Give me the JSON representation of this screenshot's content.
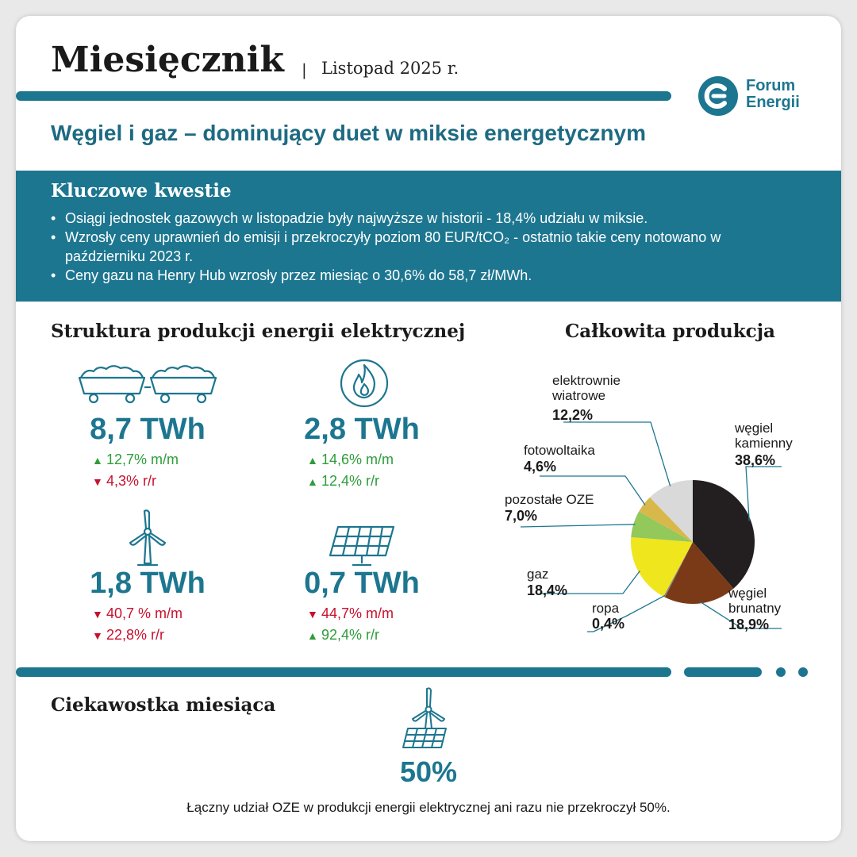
{
  "header": {
    "title": "Miesięcznik",
    "separator": "|",
    "date": "Listopad 2025 r.",
    "logo_line1": "Forum",
    "logo_line2": "Energii"
  },
  "subtitle": "Węgiel i gaz – dominujący duet w miksie energetycznym",
  "key_issues": {
    "title": "Kluczowe kwestie",
    "bullets": [
      "Osiągi jednostek gazowych w listopadzie były najwyższe w historii - 18,4% udziału w miksie.",
      "Wzrosły ceny uprawnień do emisji i przekroczyły poziom 80 EUR/tCO₂ - ostatnio takie ceny notowano w październiku 2023 r.",
      "Ceny gazu na Henry Hub wzrosły przez miesiąc o 30,6% do 58,7 zł/MWh."
    ]
  },
  "structure": {
    "title": "Struktura produkcji energii elektrycznej",
    "stats": [
      {
        "icon": "coal-wagons-icon",
        "value": "8,7 TWh",
        "mm": {
          "text": "12,7% m/m",
          "dir": "up"
        },
        "rr": {
          "text": "4,3% r/r",
          "dir": "down"
        }
      },
      {
        "icon": "gas-flame-icon",
        "value": "2,8 TWh",
        "mm": {
          "text": "14,6% m/m",
          "dir": "up"
        },
        "rr": {
          "text": "12,4% r/r",
          "dir": "up"
        }
      },
      {
        "icon": "wind-turbine-icon",
        "value": "1,8 TWh",
        "mm": {
          "text": "40,7 % m/m",
          "dir": "down"
        },
        "rr": {
          "text": "22,8% r/r",
          "dir": "down"
        }
      },
      {
        "icon": "solar-panel-icon",
        "value": "0,7 TWh",
        "mm": {
          "text": "44,7% m/m",
          "dir": "down"
        },
        "rr": {
          "text": "92,4% r/r",
          "dir": "up"
        }
      }
    ]
  },
  "chart_data": {
    "type": "pie",
    "title": "Całkowita produkcja",
    "unit": "%",
    "slices": [
      {
        "name": "węgiel kamienny",
        "value": 38.6,
        "label": "38,6%",
        "color": "#231f20"
      },
      {
        "name": "węgiel brunatny",
        "value": 18.9,
        "label": "18,9%",
        "color": "#7b3a17"
      },
      {
        "name": "ropa",
        "value": 0.4,
        "label": "0,4%",
        "color": "#8a8a8a"
      },
      {
        "name": "gaz",
        "value": 18.4,
        "label": "18,4%",
        "color": "#f0e61e"
      },
      {
        "name": "pozostałe OZE",
        "value": 7.0,
        "label": "7,0%",
        "color": "#93c85a"
      },
      {
        "name": "fotowoltaika",
        "value": 4.6,
        "label": "4,6%",
        "color": "#d8b84a"
      },
      {
        "name": "elektrownie wiatrowe",
        "value": 12.2,
        "label": "12,2%",
        "color": "#d9d9d9"
      }
    ]
  },
  "fact": {
    "title": "Ciekawostka miesiąca",
    "icon": "wind-solar-icon",
    "value": "50%",
    "text": "Łączny udział OZE w produkcji energii elektrycznej ani razu nie przekroczył 50%."
  },
  "colors": {
    "accent": "#1d7690",
    "up": "#2e9d3a",
    "down": "#c8102e"
  }
}
